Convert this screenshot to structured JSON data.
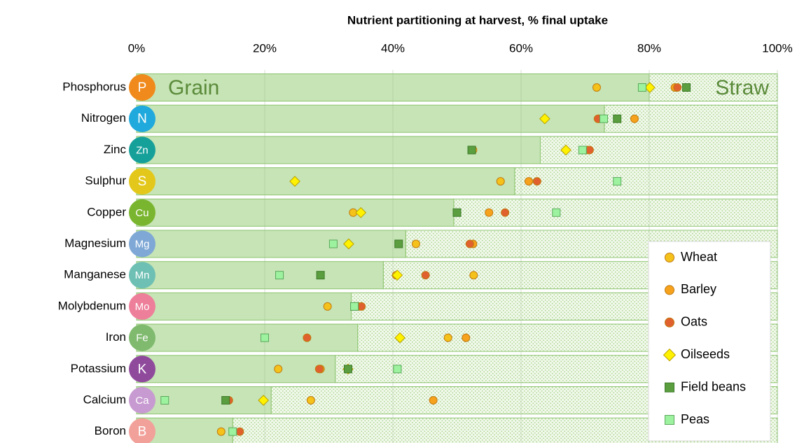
{
  "chart_data": {
    "type": "bar",
    "title": "Nutrient partitioning at harvest, % final uptake",
    "categories": [
      "Phosphorus",
      "Nitrogen",
      "Zinc",
      "Sulphur",
      "Copper",
      "Magnesium",
      "Manganese",
      "Molybdenum",
      "Iron",
      "Potassium",
      "Calcium",
      "Boron"
    ],
    "symbols": [
      "P",
      "N",
      "Zn",
      "S",
      "Cu",
      "Mg",
      "Mn",
      "Mo",
      "Fe",
      "K",
      "Ca",
      "B"
    ],
    "symbol_colors": [
      "#f08a1c",
      "#1fa9dc",
      "#16a09a",
      "#e3c81b",
      "#7ab52f",
      "#7fa8d6",
      "#6fc0b4",
      "#ee7f9a",
      "#7fba6e",
      "#8f4a9c",
      "#c79ad1",
      "#f2a09a"
    ],
    "values": [
      80,
      73,
      63,
      59,
      49.5,
      42,
      38.5,
      33.5,
      34.5,
      31,
      21,
      15
    ],
    "color": "#c6e4b5",
    "annotations": [
      "Grain",
      "Straw"
    ],
    "xlim": [
      0,
      100
    ],
    "xticks": [
      {
        "value": 0,
        "label": "0%"
      },
      {
        "value": 20,
        "label": "20%"
      },
      {
        "value": 40,
        "label": "40%"
      },
      {
        "value": 60,
        "label": "60%"
      },
      {
        "value": 80,
        "label": "80%"
      },
      {
        "value": 100,
        "label": "100%"
      }
    ],
    "grid": true,
    "legend": "bottom-right",
    "series": [
      {
        "name": "Wheat",
        "color": "#f5c21b",
        "marker": "circle",
        "values": [
          71.8,
          72.1,
          52.5,
          56.8,
          33.8,
          43.6,
          52.6,
          29.8,
          48.6,
          22.1,
          27.2,
          13.2
        ]
      },
      {
        "name": "Barley",
        "color": "#f7a21c",
        "marker": "circle",
        "values": [
          84,
          77.7,
          70.3,
          61.2,
          55,
          52.5,
          40.5,
          34.6,
          51.4,
          28.7,
          46.3,
          null
        ]
      },
      {
        "name": "Oats",
        "color": "#e0602e",
        "marker": "circle",
        "values": [
          84.4,
          72,
          70.7,
          62.5,
          57.5,
          52,
          45.1,
          35.1,
          26.6,
          28.5,
          14.4,
          16.1
        ]
      },
      {
        "name": "Oilseeds",
        "color": "#fff200",
        "marker": "diamond",
        "values": [
          80.1,
          63.7,
          67,
          24.7,
          35,
          33.1,
          40.7,
          null,
          41.1,
          33,
          19.8,
          null
        ]
      },
      {
        "name": "Field beans",
        "color": "#5a9e3f",
        "marker": "square",
        "values": [
          85.8,
          75,
          52.3,
          null,
          50,
          40.9,
          28.7,
          34,
          null,
          33,
          13.9,
          null
        ]
      },
      {
        "name": "Peas",
        "color": "#9df29f",
        "marker": "square",
        "values": [
          78.9,
          72.9,
          69.6,
          75,
          65.5,
          30.7,
          22.3,
          34,
          20,
          40.7,
          4.4,
          15
        ]
      }
    ]
  }
}
